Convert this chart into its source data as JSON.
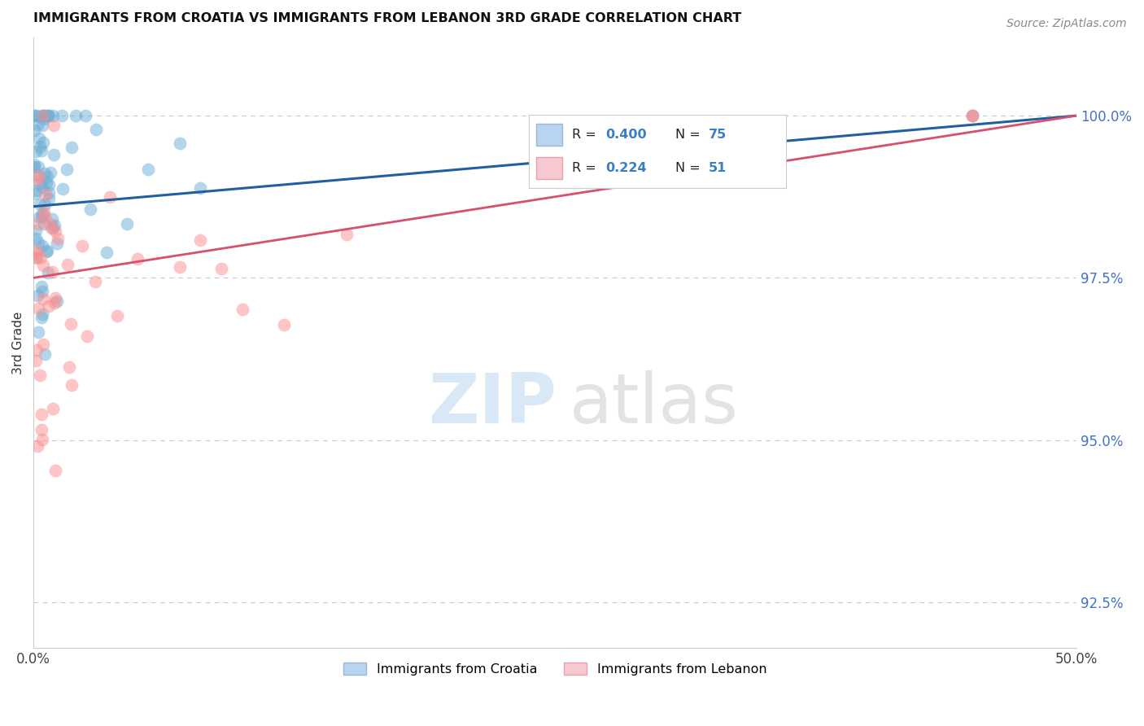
{
  "title": "IMMIGRANTS FROM CROATIA VS IMMIGRANTS FROM LEBANON 3RD GRADE CORRELATION CHART",
  "source": "Source: ZipAtlas.com",
  "xlabel_croatia": "Immigrants from Croatia",
  "xlabel_lebanon": "Immigrants from Lebanon",
  "ylabel": "3rd Grade",
  "xlim": [
    0.0,
    50.0
  ],
  "ylim": [
    91.8,
    101.2
  ],
  "ytick_vals": [
    92.5,
    95.0,
    97.5,
    100.0
  ],
  "ytick_labels": [
    "92.5%",
    "95.0%",
    "97.5%",
    "100.0%"
  ],
  "xtick_vals": [
    0.0,
    50.0
  ],
  "xtick_labels": [
    "0.0%",
    "50.0%"
  ],
  "croatia_color": "#6baed6",
  "lebanon_color": "#fc8d8d",
  "croatia_line_color": "#2060a0",
  "lebanon_line_color": "#d94f6e",
  "croatia_R": 0.4,
  "croatia_N": 75,
  "lebanon_R": 0.224,
  "lebanon_N": 51,
  "background_color": "#ffffff",
  "grid_color": "#bbbbbb",
  "right_tick_color": "#4472c4",
  "watermark_zip_color": "#c8dff5",
  "watermark_atlas_color": "#d5d5d5"
}
